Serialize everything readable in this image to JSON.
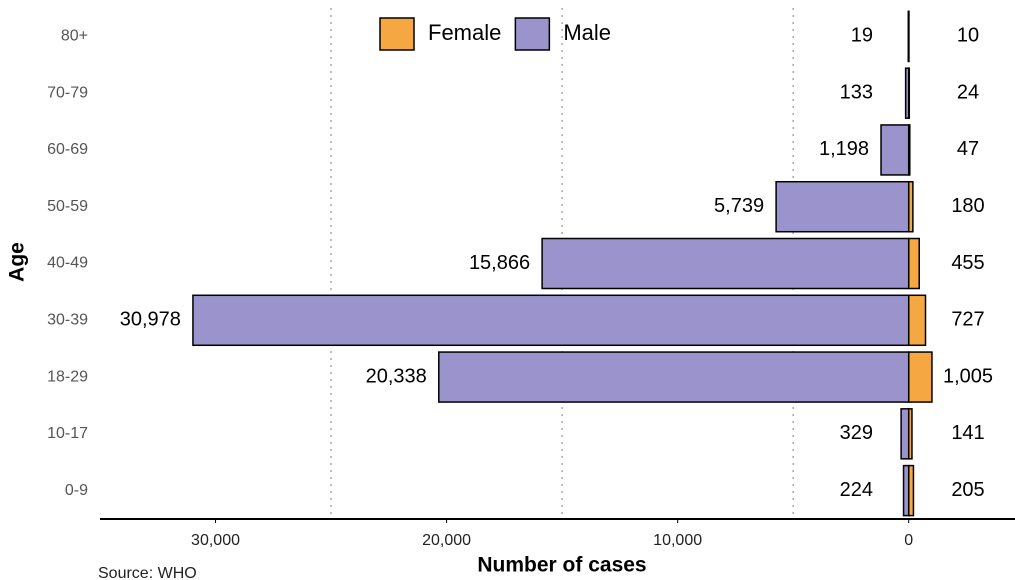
{
  "chart_data": {
    "type": "pyramid",
    "xlabel": "Number of cases",
    "ylabel": "Age",
    "source": "Source: WHO",
    "categories": [
      "80+",
      "70-79",
      "60-69",
      "50-59",
      "40-49",
      "30-39",
      "18-29",
      "10-17",
      "0-9"
    ],
    "series": [
      {
        "name": "Female",
        "color": "#f5a742",
        "side": "right",
        "values": [
          10,
          24,
          47,
          180,
          455,
          727,
          1005,
          141,
          205
        ],
        "value_labels": [
          "10",
          "24",
          "47",
          "180",
          "455",
          "727",
          "1,005",
          "141",
          "205"
        ]
      },
      {
        "name": "Male",
        "color": "#9b93cc",
        "side": "left",
        "values": [
          19,
          133,
          1198,
          5739,
          15866,
          30978,
          20338,
          329,
          224
        ],
        "value_labels": [
          "19",
          "133",
          "1,198",
          "5,739",
          "15,866",
          "30,978",
          "20,338",
          "329",
          "224"
        ]
      }
    ],
    "xlim": [
      -35000,
      4600
    ],
    "xticks": [
      {
        "value": -30000,
        "label": "30,000"
      },
      {
        "value": -20000,
        "label": "20,000"
      },
      {
        "value": -10000,
        "label": "10,000"
      },
      0
    ],
    "xgrid": [
      -25000,
      -15000,
      -5000
    ],
    "legend": "top"
  }
}
